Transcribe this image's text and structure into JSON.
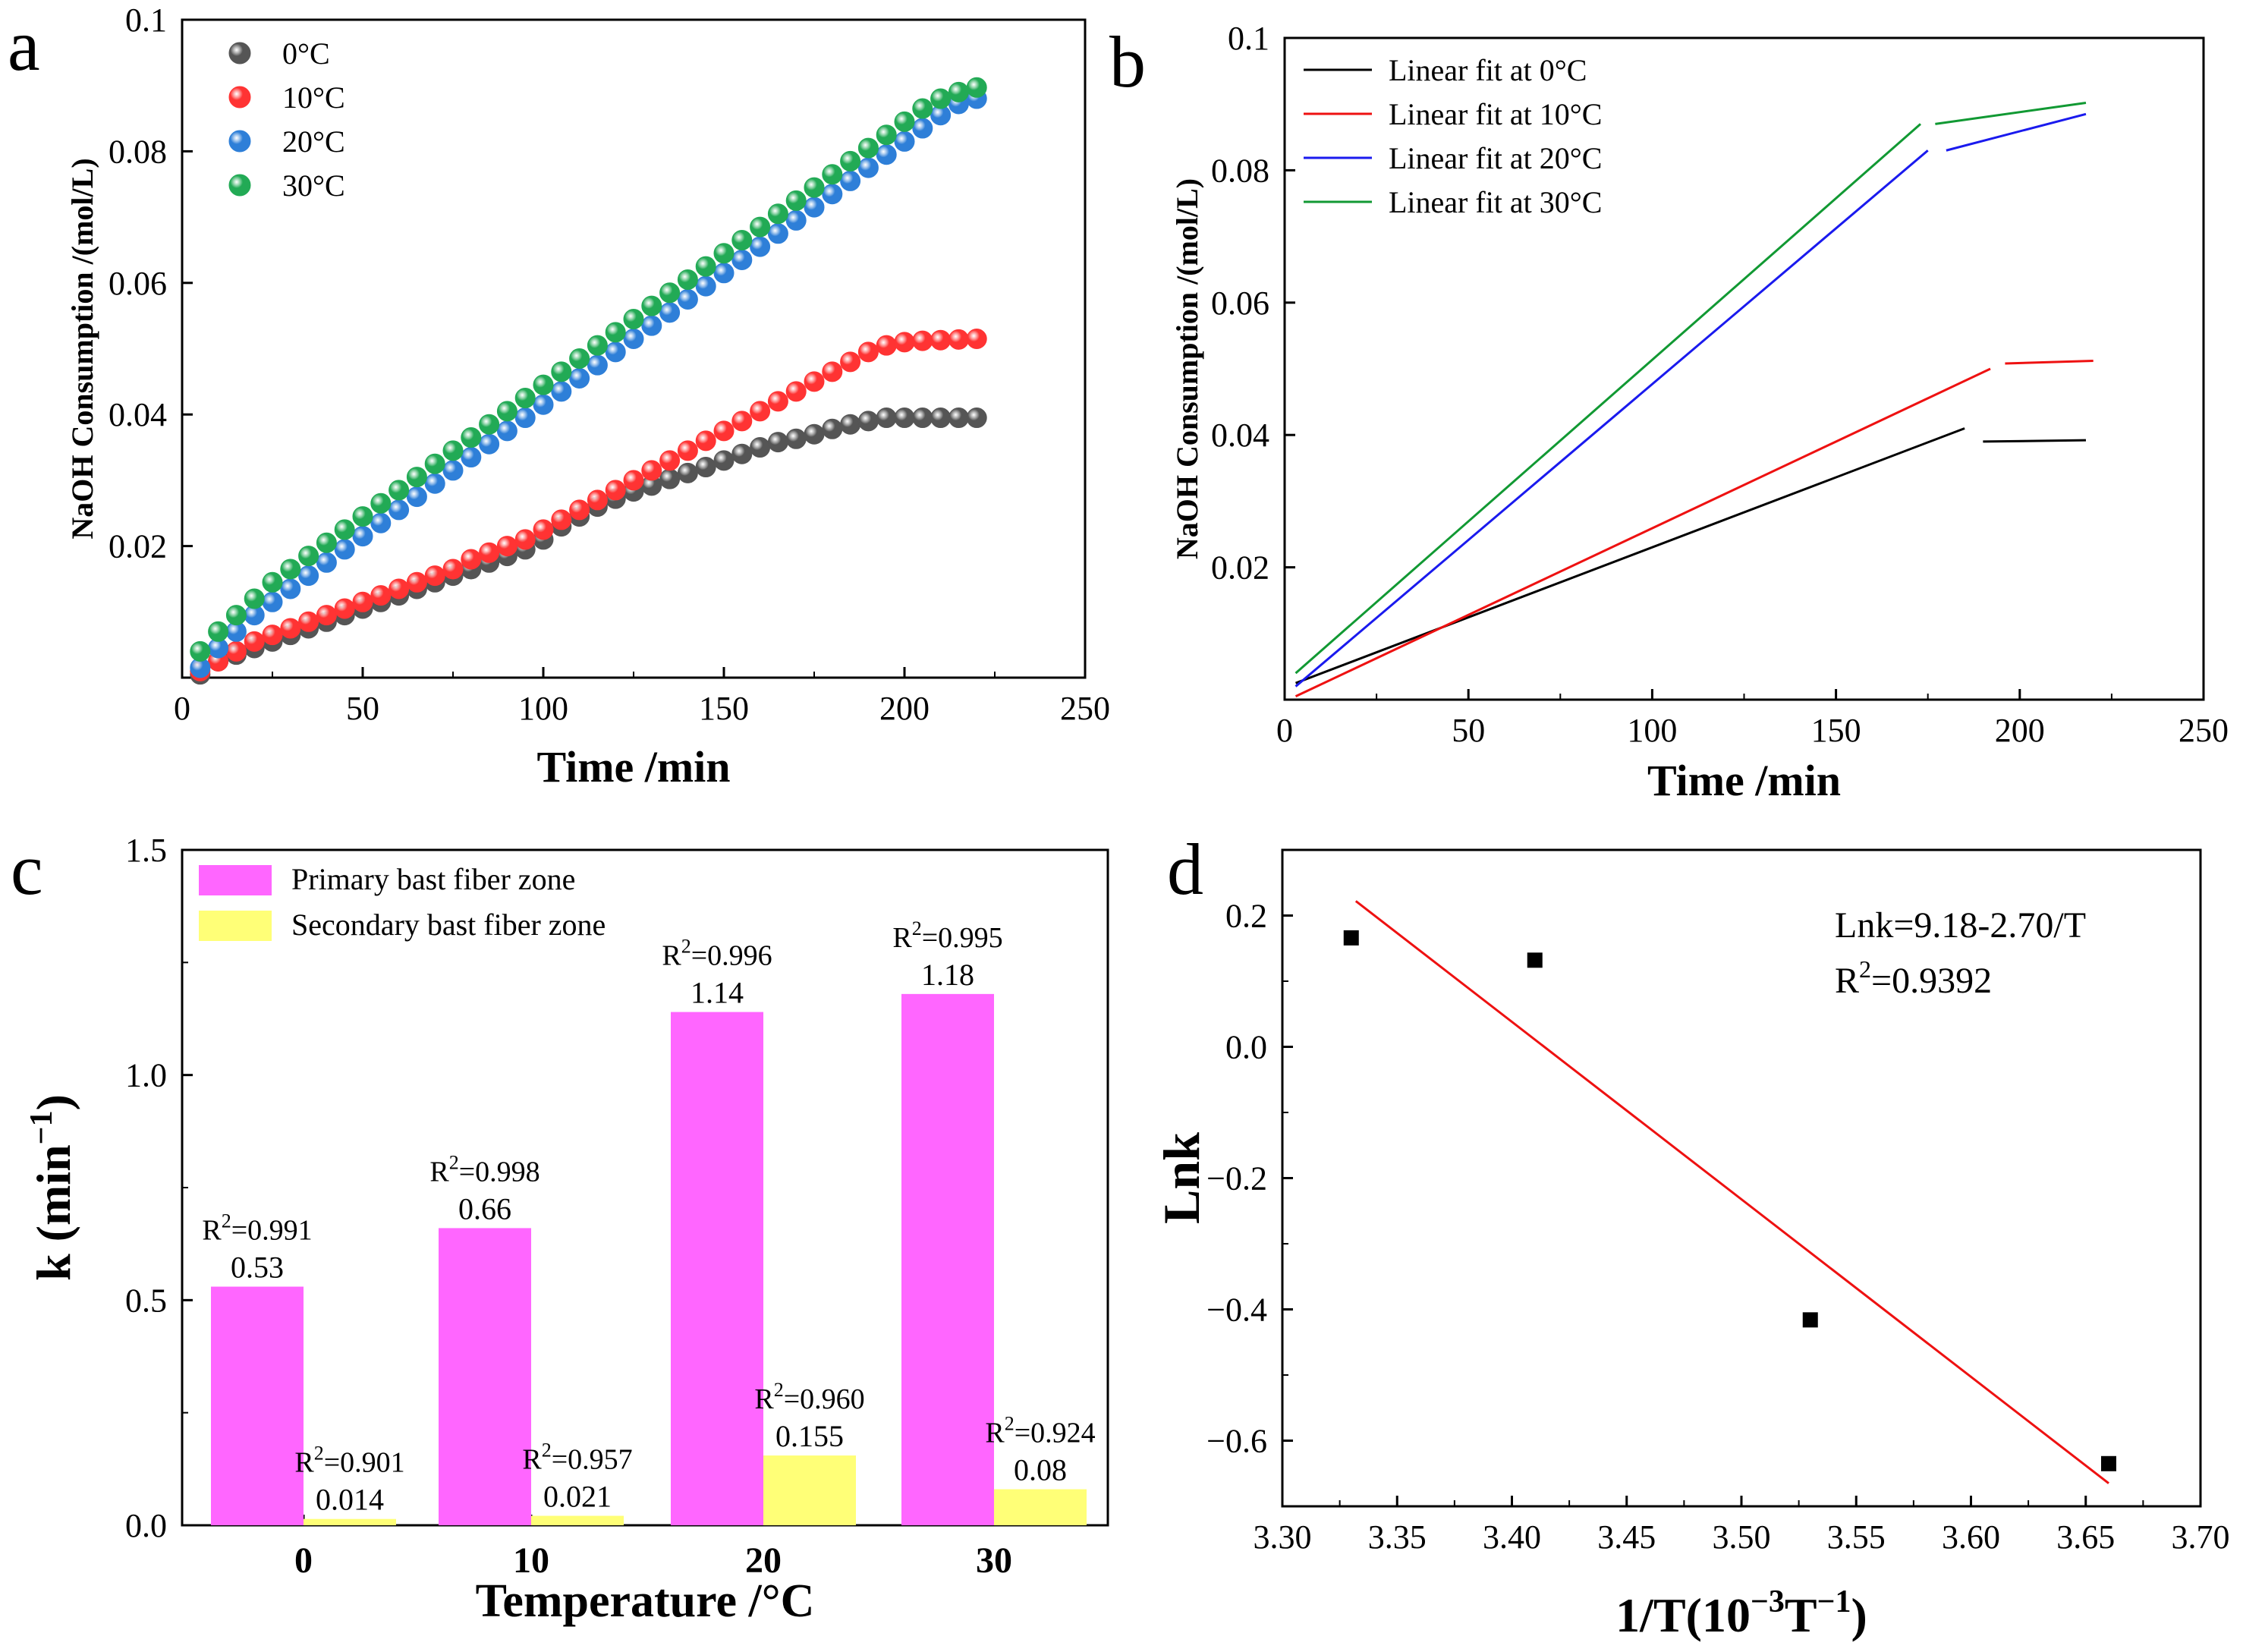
{
  "chart_data": [
    {
      "panel_label": "a",
      "type": "scatter",
      "xlabel": "Time /min",
      "ylabel": "NaOH Consumption /(mol/L)",
      "xlim": [
        0,
        250
      ],
      "ylim": [
        0,
        0.1
      ],
      "xticks": [
        "0",
        "50",
        "100",
        "150",
        "200",
        "250"
      ],
      "yticks": [
        "0.02",
        "0.04",
        "0.06",
        "0.08",
        "0.1"
      ],
      "legend_position": "top-left",
      "x": [
        5,
        10,
        15,
        20,
        25,
        30,
        35,
        40,
        45,
        50,
        55,
        60,
        65,
        70,
        75,
        80,
        85,
        90,
        95,
        100,
        105,
        110,
        115,
        120,
        125,
        130,
        135,
        140,
        145,
        150,
        155,
        160,
        165,
        170,
        175,
        180,
        185,
        190,
        195,
        200,
        205,
        210,
        215,
        220
      ],
      "series": [
        {
          "name": "0°C",
          "color": "#555555",
          "values": [
            0.0005,
            0.0025,
            0.0035,
            0.0045,
            0.0055,
            0.0065,
            0.0075,
            0.0085,
            0.0095,
            0.0105,
            0.0115,
            0.0125,
            0.0135,
            0.0145,
            0.0155,
            0.0165,
            0.0175,
            0.0185,
            0.0195,
            0.021,
            0.023,
            0.0245,
            0.026,
            0.0272,
            0.0283,
            0.0292,
            0.0302,
            0.0311,
            0.032,
            0.033,
            0.034,
            0.035,
            0.0358,
            0.0363,
            0.037,
            0.0378,
            0.0385,
            0.039,
            0.0395,
            0.0395,
            0.0395,
            0.0395,
            0.0395,
            0.0395
          ]
        },
        {
          "name": "10°C",
          "color": "#ff3333",
          "values": [
            0.001,
            0.0025,
            0.004,
            0.0055,
            0.0065,
            0.0075,
            0.0085,
            0.0095,
            0.0105,
            0.0115,
            0.0125,
            0.0135,
            0.0145,
            0.0155,
            0.0165,
            0.018,
            0.019,
            0.02,
            0.021,
            0.0225,
            0.024,
            0.0255,
            0.027,
            0.0285,
            0.03,
            0.0315,
            0.033,
            0.0345,
            0.036,
            0.0375,
            0.039,
            0.0405,
            0.042,
            0.0435,
            0.045,
            0.0465,
            0.048,
            0.0495,
            0.0505,
            0.051,
            0.0512,
            0.0513,
            0.0514,
            0.0515
          ]
        },
        {
          "name": "20°C",
          "color": "#2e7fd8",
          "values": [
            0.0015,
            0.0045,
            0.007,
            0.0095,
            0.0115,
            0.0135,
            0.0155,
            0.0175,
            0.0195,
            0.0215,
            0.0235,
            0.0255,
            0.0275,
            0.0295,
            0.0315,
            0.0335,
            0.0355,
            0.0375,
            0.0395,
            0.0415,
            0.0435,
            0.0455,
            0.0475,
            0.0495,
            0.0515,
            0.0535,
            0.0555,
            0.0575,
            0.0595,
            0.0615,
            0.0635,
            0.0655,
            0.0675,
            0.0695,
            0.0715,
            0.0735,
            0.0755,
            0.0775,
            0.0795,
            0.0815,
            0.0835,
            0.0855,
            0.0872,
            0.088
          ]
        },
        {
          "name": "30°C",
          "color": "#22aa55",
          "values": [
            0.004,
            0.007,
            0.0095,
            0.012,
            0.0145,
            0.0165,
            0.0185,
            0.0205,
            0.0225,
            0.0245,
            0.0265,
            0.0285,
            0.0305,
            0.0325,
            0.0345,
            0.0365,
            0.0385,
            0.0405,
            0.0425,
            0.0445,
            0.0465,
            0.0485,
            0.0505,
            0.0525,
            0.0545,
            0.0565,
            0.0585,
            0.0605,
            0.0625,
            0.0645,
            0.0665,
            0.0685,
            0.0705,
            0.0725,
            0.0745,
            0.0765,
            0.0785,
            0.0805,
            0.0825,
            0.0845,
            0.0865,
            0.088,
            0.089,
            0.0897
          ]
        }
      ]
    },
    {
      "panel_label": "b",
      "type": "line",
      "xlabel": "Time /min",
      "ylabel": "NaOH Consumption /(mol/L)",
      "xlim": [
        0,
        250
      ],
      "ylim": [
        0,
        0.1
      ],
      "xticks": [
        "0",
        "50",
        "100",
        "150",
        "200",
        "250"
      ],
      "yticks": [
        "0.02",
        "0.04",
        "0.06",
        "0.08",
        "0.1"
      ],
      "legend_position": "top-left",
      "series": [
        {
          "name": "Linear fit at 0°C",
          "color": "#000000",
          "segments": [
            [
              [
                3,
                0.0025
              ],
              [
                185,
                0.041
              ]
            ],
            [
              [
                190,
                0.039
              ],
              [
                218,
                0.0392
              ]
            ]
          ]
        },
        {
          "name": "Linear fit at 10°C",
          "color": "#ee1111",
          "segments": [
            [
              [
                3,
                0.0005
              ],
              [
                192,
                0.05
              ]
            ],
            [
              [
                196,
                0.0508
              ],
              [
                220,
                0.0512
              ]
            ]
          ]
        },
        {
          "name": "Linear fit at 20°C",
          "color": "#1a1aee",
          "segments": [
            [
              [
                3,
                0.002
              ],
              [
                175,
                0.083
              ]
            ],
            [
              [
                180,
                0.083
              ],
              [
                218,
                0.0885
              ]
            ]
          ]
        },
        {
          "name": "Linear fit at 30°C",
          "color": "#119933",
          "segments": [
            [
              [
                3,
                0.004
              ],
              [
                173,
                0.087
              ]
            ],
            [
              [
                177,
                0.087
              ],
              [
                218,
                0.0902
              ]
            ]
          ]
        }
      ]
    },
    {
      "panel_label": "c",
      "type": "bar",
      "xlabel": "Temperature /°C",
      "ylabel": "k (min",
      "ylabel_sup": "−1",
      "ylabel_close": ")",
      "ylim": [
        0,
        1.5
      ],
      "yticks": [
        "0.0",
        "0.5",
        "1.0",
        "1.5"
      ],
      "categories": [
        "0",
        "10",
        "20",
        "30"
      ],
      "legend_position": "top-left",
      "series": [
        {
          "name": "Primary bast fiber zone",
          "color": "#ff66ff",
          "values": [
            0.53,
            0.66,
            1.14,
            1.18
          ],
          "labels": [
            "0.53",
            "0.66",
            "1.14",
            "1.18"
          ],
          "r2": [
            "=0.991",
            "=0.998",
            "=0.996",
            "=0.995"
          ]
        },
        {
          "name": "Secondary bast fiber zone",
          "color": "#ffff77",
          "values": [
            0.014,
            0.021,
            0.155,
            0.08
          ],
          "labels": [
            "0.014",
            "0.021",
            "0.155",
            "0.08"
          ],
          "r2": [
            "=0.901",
            "=0.957",
            "=0.960",
            "=0.924"
          ]
        }
      ],
      "r2_prefix": "R",
      "r2_sup": "2"
    },
    {
      "panel_label": "d",
      "type": "scatter",
      "xlabel": "1/T(10",
      "xlabel_sup": "−3",
      "xlabel_mid": "T",
      "xlabel_sup2": "−1",
      "xlabel_close": ")",
      "ylabel": "Lnk",
      "xlim": [
        3.3,
        3.7
      ],
      "ylim": [
        -0.7,
        0.3
      ],
      "xticks": [
        "3.30",
        "3.35",
        "3.40",
        "3.45",
        "3.50",
        "3.55",
        "3.60",
        "3.65",
        "3.70"
      ],
      "yticks": [
        "−0.6",
        "−0.4",
        "−0.2",
        "0.0",
        "0.2"
      ],
      "points": {
        "x": [
          3.33,
          3.41,
          3.53,
          3.66
        ],
        "y": [
          0.166,
          0.132,
          -0.416,
          -0.635
        ],
        "color": "#000000"
      },
      "fit": {
        "x": [
          3.332,
          3.66
        ],
        "y": [
          0.222,
          -0.665
        ],
        "color": "#ee1111"
      },
      "equation": "Lnk=9.18-2.70/T",
      "r2_prefix": "R",
      "r2_sup": "2",
      "r2_value": "=0.9392"
    }
  ]
}
